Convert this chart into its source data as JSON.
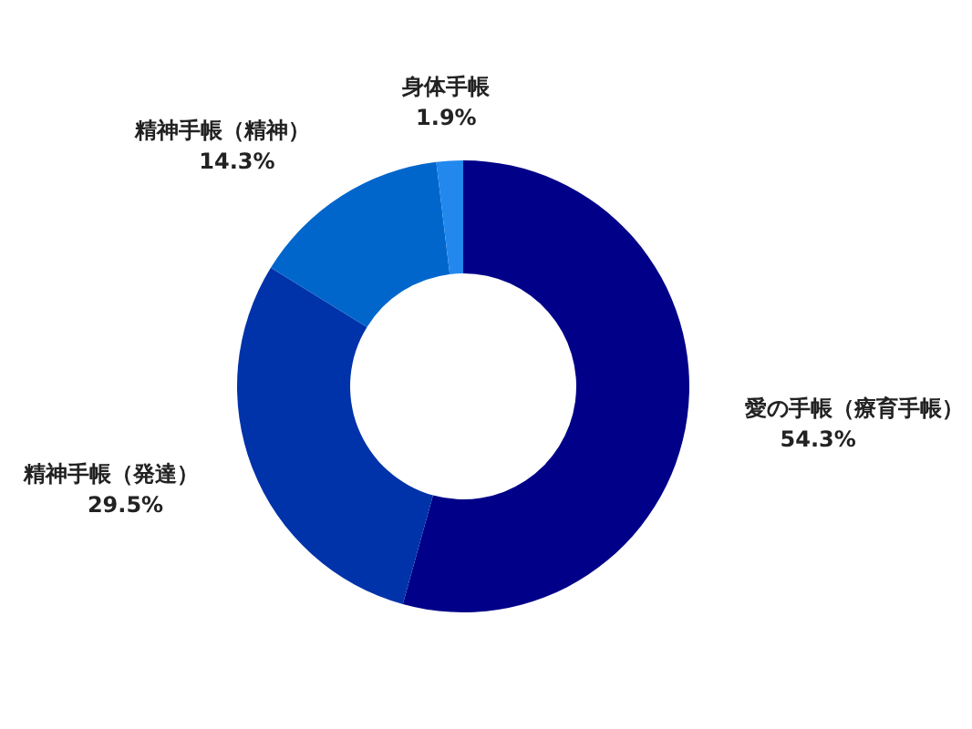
{
  "chart_data": {
    "type": "donut",
    "categories": [
      "愛の手帳（療育手帳）",
      "精神手帳（発達）",
      "精神手帳（精神）",
      "身体手帳"
    ],
    "values": [
      54.3,
      29.5,
      14.3,
      1.9
    ],
    "colors": [
      "#000088",
      "#0033aa",
      "#0066cc",
      "#2288ee"
    ],
    "value_labels": [
      "54.3%",
      "29.5%",
      "14.3%",
      "1.9%"
    ]
  }
}
